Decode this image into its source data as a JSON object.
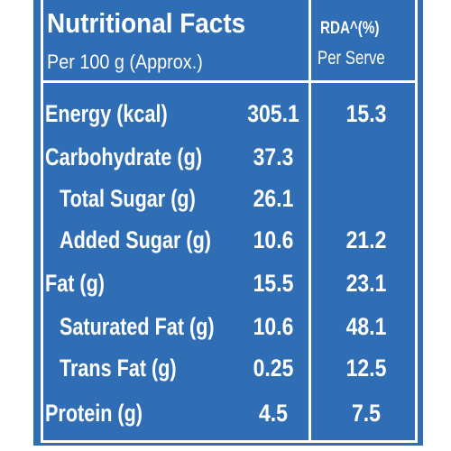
{
  "header": {
    "title": "Nutritional Facts",
    "subtitle": "Per 100 g (Approx.)",
    "rda_title": "RDA^(%)",
    "rda_subtitle": "Per Serve"
  },
  "table": {
    "rows": [
      [
        "Energy (kcal)",
        305.1,
        15.3
      ],
      [
        "Carbohydrate (g)",
        37.3,
        null
      ],
      [
        "Total Sugar (g)",
        26.1,
        null
      ],
      [
        "Added Sugar (g)",
        10.6,
        21.2
      ],
      [
        "Fat (g)",
        15.5,
        23.1
      ],
      [
        "Saturated Fat (g)",
        10.6,
        48.1
      ],
      [
        "Trans Fat (g)",
        0.25,
        12.5
      ],
      [
        "Protein (g)",
        4.5,
        7.5
      ]
    ]
  }
}
